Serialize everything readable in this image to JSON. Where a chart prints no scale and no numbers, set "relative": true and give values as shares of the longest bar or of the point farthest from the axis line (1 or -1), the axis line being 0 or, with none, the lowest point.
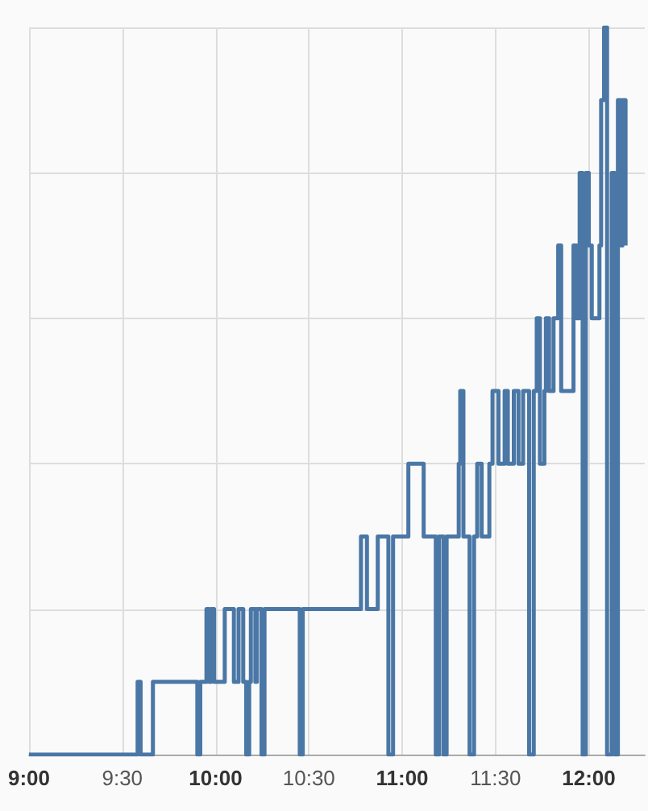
{
  "chart_data": {
    "type": "step",
    "relative": true,
    "grid": true,
    "marker": "none",
    "line_style": "solid",
    "xlim": [
      9,
      12.3
    ],
    "xticks": [
      {
        "value": 9,
        "label": "9:00"
      },
      {
        "value": 9.5,
        "label": "9:30"
      },
      {
        "value": 10,
        "label": "10:00"
      },
      {
        "value": 10.5,
        "label": "10:30"
      },
      {
        "value": 11,
        "label": "11:00"
      },
      {
        "value": 11.5,
        "label": "11:30"
      },
      {
        "value": 12,
        "label": "12:00"
      }
    ],
    "series": [
      {
        "color": "#4a77a6",
        "x": [
          9.0,
          9.582,
          9.598,
          9.664,
          9.902,
          9.918,
          9.951,
          9.967,
          9.975,
          9.992,
          10.049,
          10.098,
          10.123,
          10.148,
          10.164,
          10.18,
          10.189,
          10.213,
          10.221,
          10.246,
          10.262,
          10.451,
          10.467,
          10.779,
          10.811,
          10.869,
          10.926,
          10.951,
          11.033,
          11.115,
          11.18,
          11.197,
          11.221,
          11.238,
          11.303,
          11.311,
          11.328,
          11.361,
          11.385,
          11.402,
          11.426,
          11.467,
          11.484,
          11.516,
          11.549,
          11.566,
          11.598,
          11.623,
          11.648,
          11.68,
          11.705,
          11.721,
          11.738,
          11.762,
          11.77,
          11.787,
          11.811,
          11.836,
          11.852,
          11.918,
          11.934,
          11.951,
          11.967,
          11.984,
          12.0,
          12.016,
          12.057,
          12.066,
          12.082,
          12.098,
          12.123,
          12.139,
          12.156,
          12.172,
          12.18,
          12.197
        ],
        "values": [
          0,
          0.1,
          0,
          0.1,
          0,
          0.1,
          0.2,
          0.1,
          0.2,
          0.1,
          0.2,
          0.1,
          0.2,
          0.1,
          0,
          0.1,
          0.2,
          0.1,
          0.2,
          0,
          0.2,
          0,
          0.2,
          0.3,
          0.2,
          0.3,
          0,
          0.3,
          0.4,
          0.3,
          0,
          0.3,
          0,
          0.3,
          0.4,
          0.5,
          0.3,
          0,
          0.3,
          0.4,
          0.3,
          0.4,
          0.5,
          0.4,
          0.5,
          0.4,
          0.5,
          0.4,
          0.5,
          0,
          0.5,
          0.6,
          0.4,
          0.5,
          0.6,
          0.5,
          0.6,
          0.7,
          0.5,
          0.7,
          0.6,
          0.8,
          0,
          0.8,
          0.7,
          0.6,
          0.7,
          0.9,
          1,
          0,
          0.8,
          0,
          0.9,
          0.7,
          0.9,
          0.7
        ]
      }
    ]
  }
}
